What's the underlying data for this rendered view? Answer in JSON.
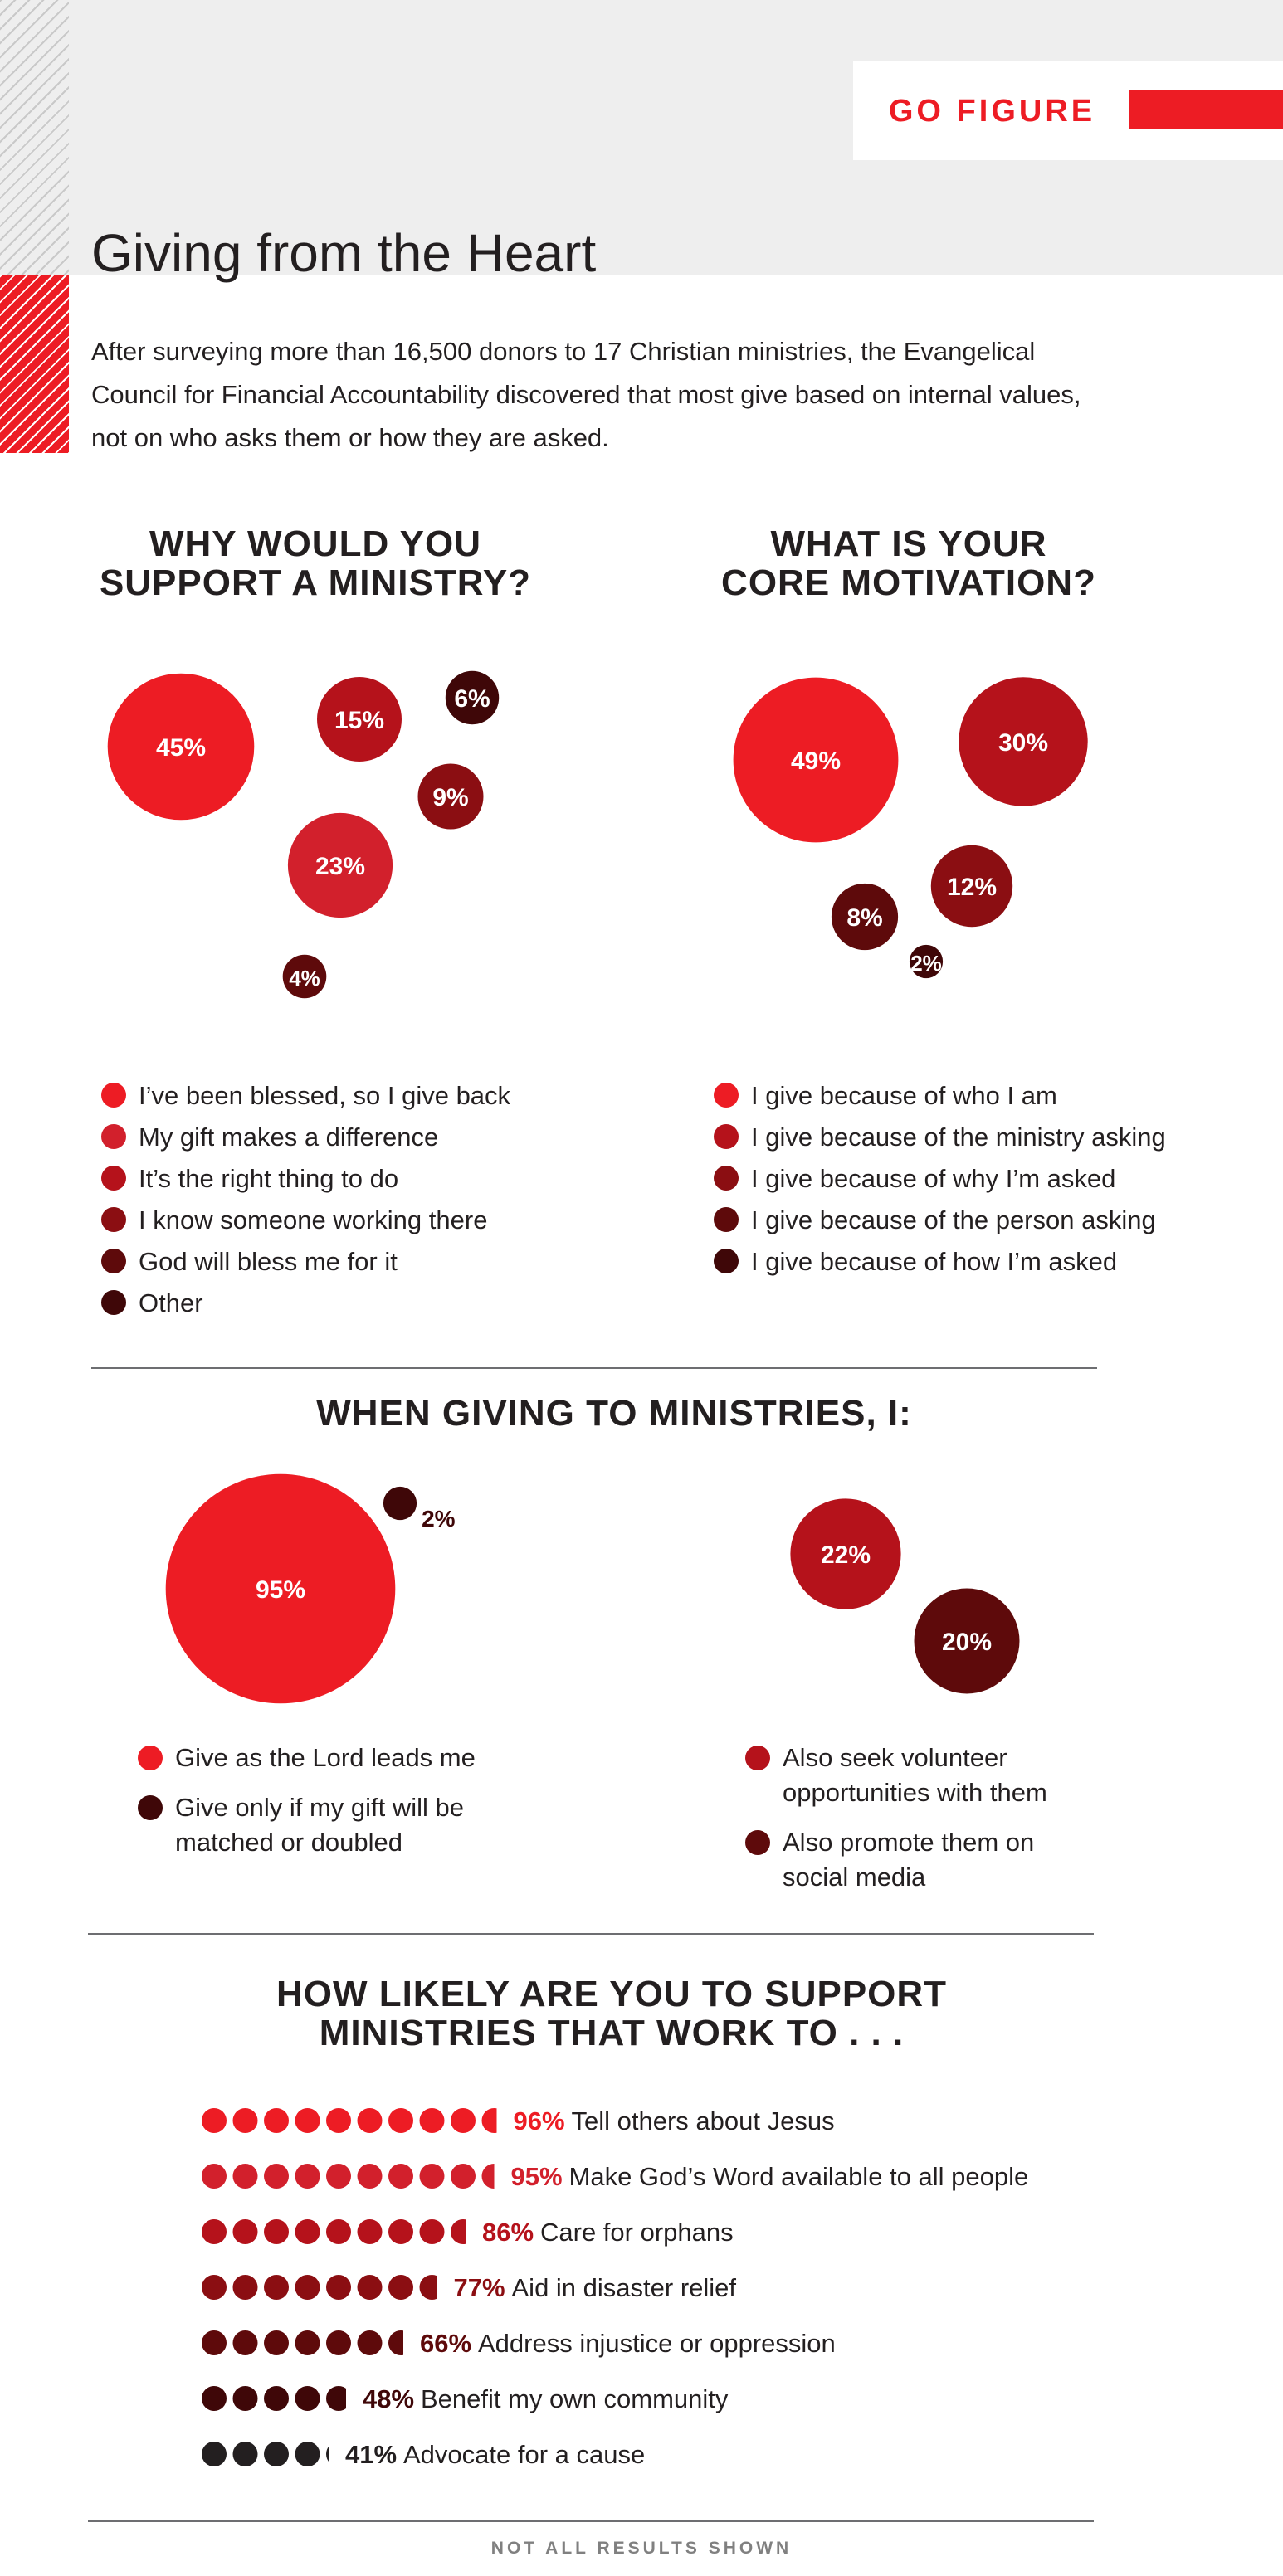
{
  "header": {
    "section_label": "GO FIGURE",
    "title": "Giving from the Heart",
    "intro": "After surveying more than 16,500 donors to 17 Christian ministries, the Evangelical Council for Financial Accountability discovered that most give based on internal values, not on who asks them or how they are asked.",
    "accent_color": "#ed1c24"
  },
  "colors": {
    "c1": "#ed1c24",
    "c2": "#d2202c",
    "c3": "#b5121b",
    "c4": "#8b0e12",
    "c5": "#5e0a0b",
    "c6": "#3f0708",
    "c7": "#231f20"
  },
  "chart_data": [
    {
      "type": "bubble",
      "title": "WHY WOULD YOU\nSUPPORT A MINISTRY?",
      "series": [
        {
          "name": "I’ve been blessed, so I give back",
          "value": 45,
          "label": "45%"
        },
        {
          "name": "My gift makes a difference",
          "value": 23,
          "label": "23%"
        },
        {
          "name": "It’s the right thing to do",
          "value": 15,
          "label": "15%"
        },
        {
          "name": "I know someone working there",
          "value": 9,
          "label": "9%"
        },
        {
          "name": "God will bless me for it",
          "value": 6,
          "label": "6%"
        },
        {
          "name": "Other",
          "value": 4,
          "label": "4%"
        }
      ]
    },
    {
      "type": "bubble",
      "title": "WHAT IS YOUR\nCORE MOTIVATION?",
      "series": [
        {
          "name": "I give because of who I am",
          "value": 49,
          "label": "49%"
        },
        {
          "name": "I give because of the ministry asking",
          "value": 30,
          "label": "30%"
        },
        {
          "name": "I give because of why I’m asked",
          "value": 12,
          "label": "12%"
        },
        {
          "name": "I give because of the person asking",
          "value": 8,
          "label": "8%"
        },
        {
          "name": "I give because of how I’m asked",
          "value": 2,
          "label": "2%"
        }
      ]
    },
    {
      "type": "bubble",
      "title": "WHEN GIVING TO MINISTRIES, I:",
      "series": [
        {
          "name": "Give as the Lord leads me",
          "value": 95,
          "label": "95%"
        },
        {
          "name": "Give only if my gift will be matched or doubled",
          "value": 2,
          "label": "2%"
        },
        {
          "name": "Also seek volunteer opportunities with them",
          "value": 22,
          "label": "22%"
        },
        {
          "name": "Also promote them on social media",
          "value": 20,
          "label": "20%"
        }
      ]
    },
    {
      "type": "dot-bar",
      "title": "HOW LIKELY ARE YOU TO SUPPORT\nMINISTRIES THAT WORK TO . . .",
      "unit": "%",
      "categories": [
        "Tell others about Jesus",
        "Make God’s Word available to all people",
        "Care for orphans",
        "Aid in disaster relief",
        "Address injustice or oppression",
        "Benefit my own community",
        "Advocate for a cause"
      ],
      "values": [
        96,
        95,
        86,
        77,
        66,
        48,
        41
      ],
      "labels": [
        "96%",
        "95%",
        "86%",
        "77%",
        "66%",
        "48%",
        "41%"
      ]
    }
  ],
  "footnote": "NOT ALL RESULTS SHOWN"
}
